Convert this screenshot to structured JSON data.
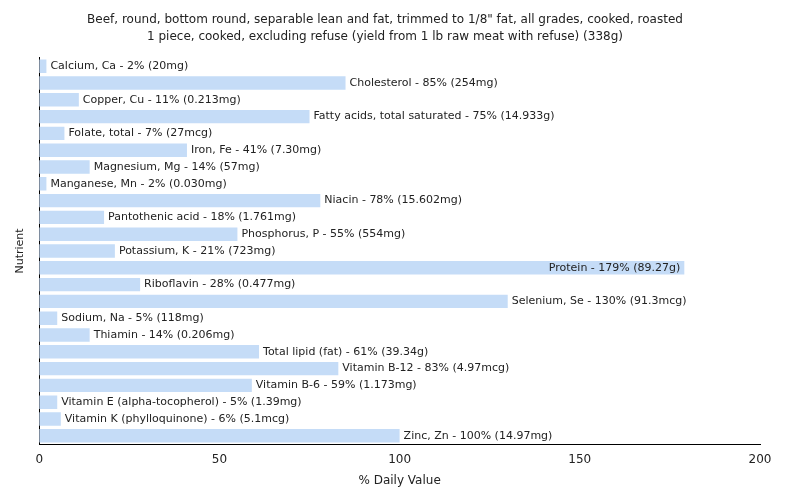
{
  "chart_data": {
    "type": "bar",
    "orientation": "horizontal",
    "title": "Beef, round, bottom round, separable lean and fat, trimmed to 1/8\" fat, all grades, cooked, roasted",
    "subtitle": "1 piece, cooked, excluding refuse (yield from 1 lb raw meat with refuse) (338g)",
    "x_label": "% Daily Value",
    "y_label": "Nutrient",
    "categories": [
      null,
      null,
      null,
      null,
      null,
      null,
      null,
      null,
      null,
      null,
      null,
      null,
      null,
      null,
      null,
      null,
      null,
      null,
      null,
      null,
      null,
      null,
      null
    ],
    "values": [
      2,
      85,
      11,
      75,
      7,
      41,
      14,
      2,
      78,
      18,
      55,
      21,
      179,
      28,
      130,
      5,
      14,
      61,
      83,
      59,
      5,
      6,
      100
    ],
    "value_labels": [
      "Calcium, Ca - 2% (20mg)",
      "Cholesterol - 85% (254mg)",
      "Copper, Cu - 11% (0.213mg)",
      "Fatty acids, total saturated - 75% (14.933g)",
      "Folate, total - 7% (27mcg)",
      "Iron, Fe - 41% (7.30mg)",
      "Magnesium, Mg - 14% (57mg)",
      "Manganese, Mn - 2% (0.030mg)",
      "Niacin - 78% (15.602mg)",
      "Pantothenic acid - 18% (1.761mg)",
      "Phosphorus, P - 55% (554mg)",
      "Potassium, K - 21% (723mg)",
      "Protein - 179% (89.27g)",
      "Riboflavin - 28% (0.477mg)",
      "Selenium, Se - 130% (91.3mcg)",
      "Sodium, Na - 5% (118mg)",
      "Thiamin - 14% (0.206mg)",
      "Total lipid (fat) - 61% (39.34g)",
      "Vitamin B-12 - 83% (4.97mcg)",
      "Vitamin B-6 - 59% (1.173mg)",
      "Vitamin E (alpha-tocopherol) - 5% (1.39mg)",
      "Vitamin K (phylloquinone) - 6% (5.1mcg)",
      "Zinc, Zn - 100% (14.97mg)"
    ],
    "color": "#c5dcf7",
    "xlim": [
      0,
      200
    ],
    "xticks": [
      0,
      50,
      100,
      150,
      200
    ],
    "grid": false,
    "data_labels": true,
    "tick_labels": "x"
  }
}
